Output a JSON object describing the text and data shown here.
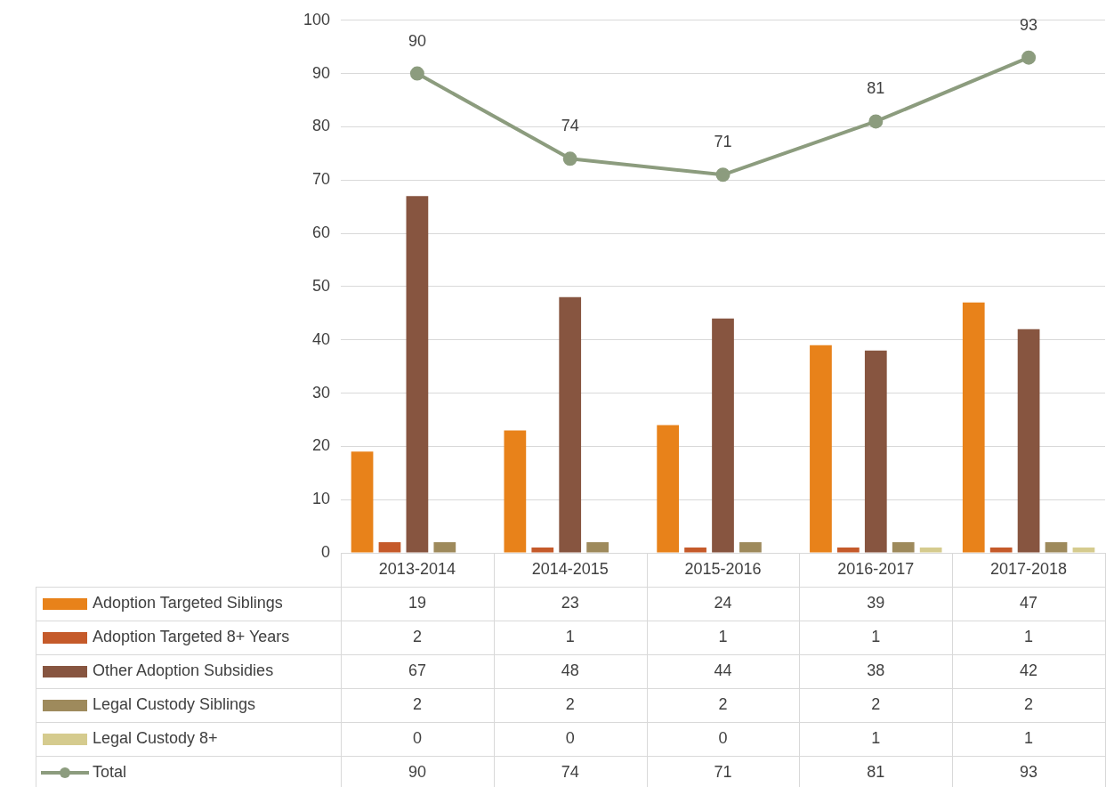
{
  "chart_data": {
    "type": "bar",
    "categories": [
      "2013-2014",
      "2014-2015",
      "2015-2016",
      "2016-2017",
      "2017-2018"
    ],
    "series": [
      {
        "name": "Adoption Targeted Siblings",
        "color": "#e8821a",
        "values": [
          19,
          23,
          24,
          39,
          47
        ]
      },
      {
        "name": "Adoption Targeted 8+ Years",
        "color": "#c55a2a",
        "values": [
          2,
          1,
          1,
          1,
          1
        ]
      },
      {
        "name": "Other Adoption Subsidies",
        "color": "#875540",
        "values": [
          67,
          48,
          44,
          38,
          42
        ]
      },
      {
        "name": "Legal Custody Siblings",
        "color": "#9e8a5c",
        "values": [
          2,
          2,
          2,
          2,
          2
        ]
      },
      {
        "name": "Legal Custody 8+",
        "color": "#d5cb8e",
        "values": [
          0,
          0,
          0,
          1,
          1
        ]
      },
      {
        "name": "Total",
        "type": "line",
        "color": "#8c9c7e",
        "marker": "circle",
        "values": [
          90,
          74,
          71,
          81,
          93
        ]
      }
    ],
    "annotations": [
      {
        "text": "90",
        "x": "2013-2014",
        "y": 90
      },
      {
        "text": "74",
        "x": "2014-2015",
        "y": 74
      },
      {
        "text": "71",
        "x": "2015-2016",
        "y": 71
      },
      {
        "text": "81",
        "x": "2016-2017",
        "y": 81
      },
      {
        "text": "93",
        "x": "2017-2018",
        "y": 93
      }
    ],
    "ylim": [
      0,
      100
    ],
    "yticks": [
      0,
      10,
      20,
      30,
      40,
      50,
      60,
      70,
      80,
      90,
      100
    ],
    "grid": "y",
    "legend": "bottom",
    "data_labels": true
  }
}
